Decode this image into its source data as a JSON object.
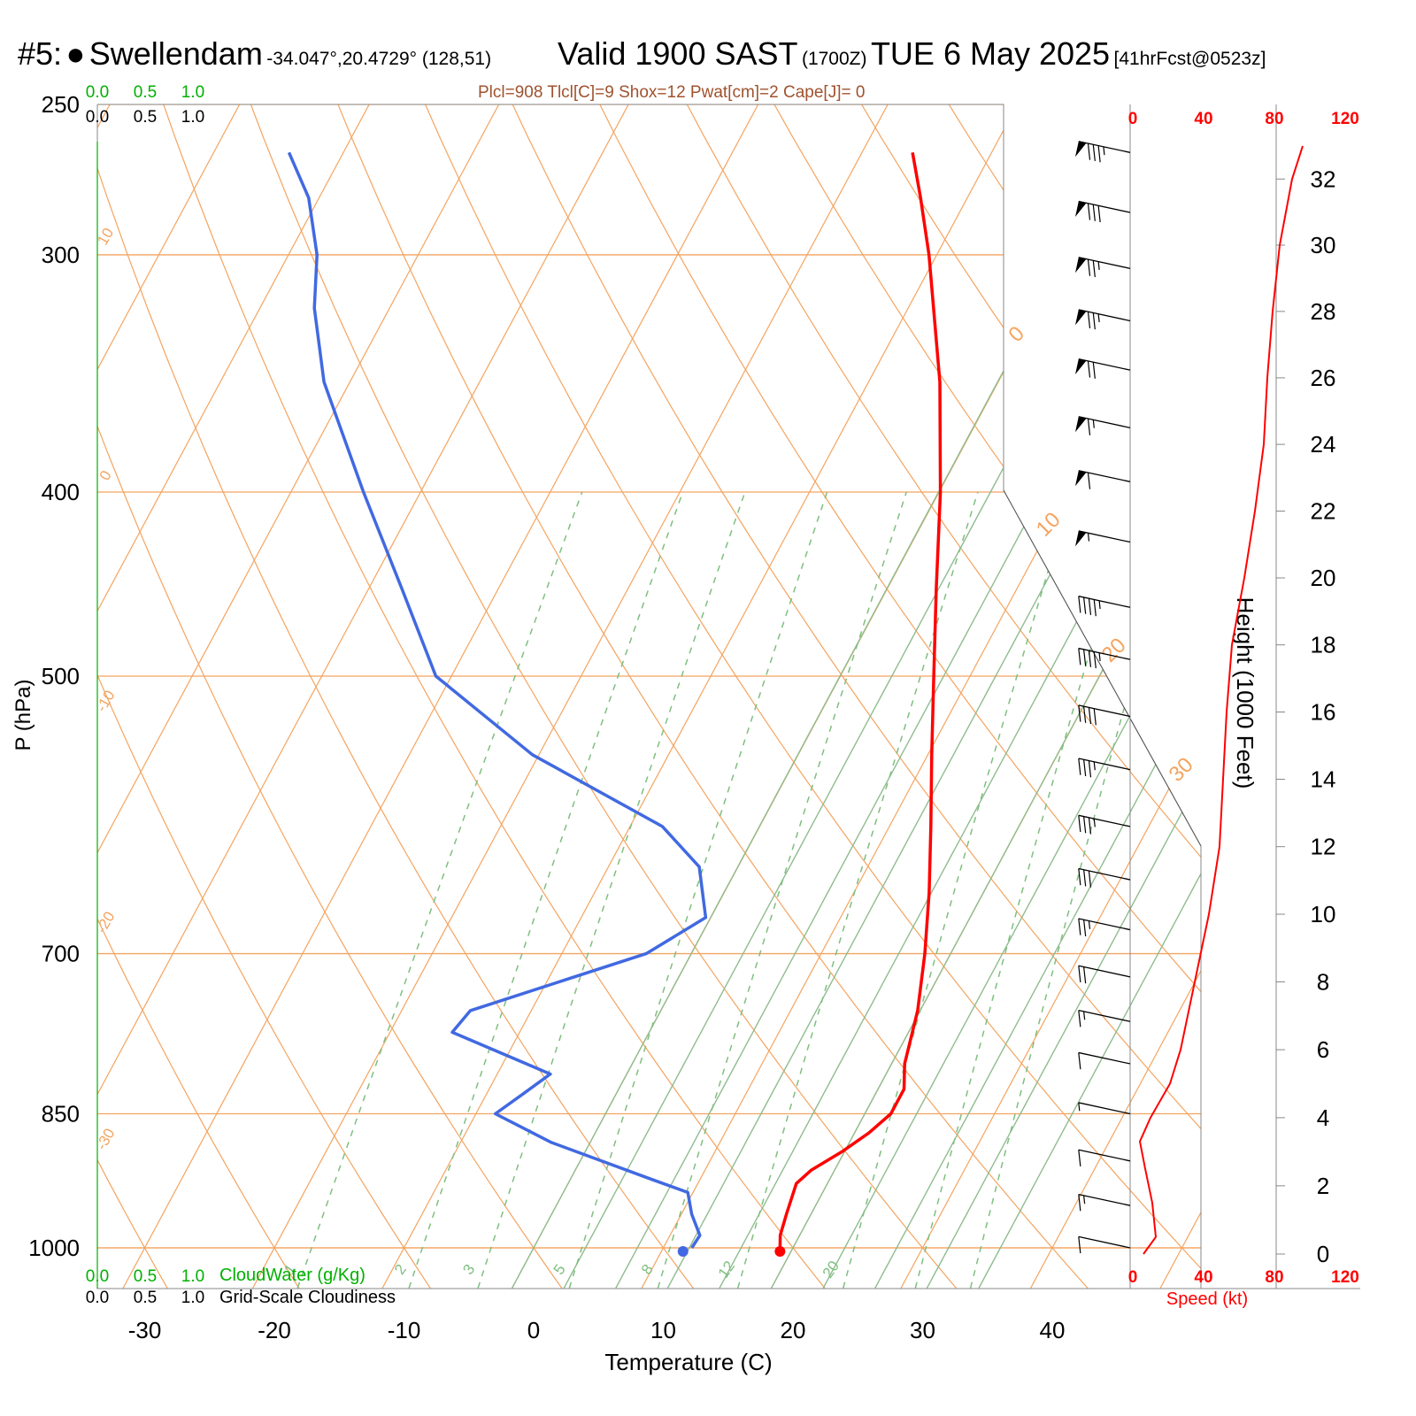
{
  "header": {
    "station_num": "#5:",
    "station_name": "Swellendam",
    "coords": "-34.047°,20.4729° (128,51)",
    "valid": "Valid 1900 SAST",
    "zulu": "(1700Z)",
    "date": "TUE 6 May 2025",
    "forecast": "[41hrFcst@0523z]"
  },
  "stats_line": "Plcl=908 Tlcl[C]=9 Shox=12 Pwat[cm]=2 Cape[J]= 0",
  "legend": {
    "cloudwater_label": "CloudWater (g/Kg)",
    "cloudiness_label": "Grid-Scale Cloudiness",
    "scale_ticks": [
      "0.0",
      "0.5",
      "1.0"
    ]
  },
  "colors": {
    "isotherm": "#f4a460",
    "dry_adiabat": "#f4a460",
    "moist_adiabat": "#8fbc8f",
    "mixing_ratio": "#7fbf7f",
    "temperature": "#ff0000",
    "dewpoint": "#4169e1",
    "wind_speed": "#ff0000",
    "cloudwater": "#00b000"
  },
  "chart_data": {
    "type": "line",
    "subtype": "skew-T log-P sounding",
    "xlabel": "Temperature (C)",
    "ylabel": "P (hPa)",
    "right_label": "Height (1000 Feet)",
    "speed_label": "Speed (kt)",
    "x_ticks": [
      -30,
      -20,
      -10,
      0,
      10,
      20,
      30,
      40
    ],
    "pressure_ticks": [
      1000,
      850,
      700,
      500,
      400,
      300,
      250
    ],
    "height_ticks_kft": [
      0,
      2,
      4,
      6,
      8,
      10,
      12,
      14,
      16,
      18,
      20,
      22,
      24,
      26,
      28,
      30,
      32
    ],
    "speed_ticks_kt": [
      0,
      40,
      80,
      120
    ],
    "isotherm_labels": [
      10,
      0,
      -10,
      -20,
      -30,
      0,
      10,
      20,
      30
    ],
    "mixing_ratio_labels": [
      1,
      2,
      3,
      5,
      8,
      12,
      20
    ],
    "temperature": [
      {
        "p": 1000,
        "t": 19.0
      },
      {
        "p": 985,
        "t": 18.5
      },
      {
        "p": 960,
        "t": 18.1
      },
      {
        "p": 925,
        "t": 17.6
      },
      {
        "p": 910,
        "t": 18.2
      },
      {
        "p": 890,
        "t": 19.8
      },
      {
        "p": 870,
        "t": 21.1
      },
      {
        "p": 850,
        "t": 22.0
      },
      {
        "p": 825,
        "t": 22.0
      },
      {
        "p": 800,
        "t": 21.0
      },
      {
        "p": 750,
        "t": 19.8
      },
      {
        "p": 700,
        "t": 18.0
      },
      {
        "p": 650,
        "t": 15.8
      },
      {
        "p": 600,
        "t": 13.2
      },
      {
        "p": 550,
        "t": 10.3
      },
      {
        "p": 500,
        "t": 7.2
      },
      {
        "p": 450,
        "t": 3.8
      },
      {
        "p": 400,
        "t": 0.1
      },
      {
        "p": 350,
        "t": -4.5
      },
      {
        "p": 300,
        "t": -10.6
      },
      {
        "p": 280,
        "t": -13.6
      },
      {
        "p": 265,
        "t": -16.1
      }
    ],
    "dewpoint": [
      {
        "p": 1000,
        "t": 12.2
      },
      {
        "p": 985,
        "t": 12.3
      },
      {
        "p": 960,
        "t": 10.8
      },
      {
        "p": 935,
        "t": 9.6
      },
      {
        "p": 920,
        "t": 6.2
      },
      {
        "p": 880,
        "t": -3.0
      },
      {
        "p": 850,
        "t": -8.5
      },
      {
        "p": 830,
        "t": -7.2
      },
      {
        "p": 810,
        "t": -5.9
      },
      {
        "p": 770,
        "t": -15.2
      },
      {
        "p": 750,
        "t": -14.7
      },
      {
        "p": 700,
        "t": -3.5
      },
      {
        "p": 670,
        "t": -0.4
      },
      {
        "p": 630,
        "t": -3.0
      },
      {
        "p": 600,
        "t": -7.5
      },
      {
        "p": 550,
        "t": -20.5
      },
      {
        "p": 500,
        "t": -31.2
      },
      {
        "p": 450,
        "t": -37.4
      },
      {
        "p": 400,
        "t": -44.4
      },
      {
        "p": 350,
        "t": -52.0
      },
      {
        "p": 320,
        "t": -55.8
      },
      {
        "p": 300,
        "t": -57.8
      },
      {
        "p": 280,
        "t": -60.8
      },
      {
        "p": 265,
        "t": -64.2
      }
    ],
    "wind_speed_profile": [
      {
        "h": 0,
        "s": 6
      },
      {
        "h": 0.5,
        "s": 13
      },
      {
        "h": 1.5,
        "s": 11
      },
      {
        "h": 2.5,
        "s": 7
      },
      {
        "h": 3.3,
        "s": 4
      },
      {
        "h": 4.0,
        "s": 10
      },
      {
        "h": 5.0,
        "s": 21
      },
      {
        "h": 6.0,
        "s": 27
      },
      {
        "h": 8.0,
        "s": 35
      },
      {
        "h": 10.0,
        "s": 43
      },
      {
        "h": 12.0,
        "s": 49
      },
      {
        "h": 14.0,
        "s": 51
      },
      {
        "h": 16.0,
        "s": 53
      },
      {
        "h": 18.0,
        "s": 56
      },
      {
        "h": 20.0,
        "s": 63
      },
      {
        "h": 22.0,
        "s": 69
      },
      {
        "h": 24.0,
        "s": 74
      },
      {
        "h": 26.0,
        "s": 76
      },
      {
        "h": 28.0,
        "s": 79
      },
      {
        "h": 30.0,
        "s": 83
      },
      {
        "h": 32.0,
        "s": 90
      },
      {
        "h": 33.0,
        "s": 96
      }
    ],
    "wind_barbs": [
      {
        "p": 265,
        "kt": 85
      },
      {
        "p": 285,
        "kt": 80
      },
      {
        "p": 305,
        "kt": 78
      },
      {
        "p": 325,
        "kt": 75
      },
      {
        "p": 345,
        "kt": 72
      },
      {
        "p": 370,
        "kt": 68
      },
      {
        "p": 395,
        "kt": 62
      },
      {
        "p": 425,
        "kt": 55
      },
      {
        "p": 460,
        "kt": 48
      },
      {
        "p": 490,
        "kt": 45
      },
      {
        "p": 525,
        "kt": 42
      },
      {
        "p": 560,
        "kt": 38
      },
      {
        "p": 600,
        "kt": 35
      },
      {
        "p": 640,
        "kt": 30
      },
      {
        "p": 680,
        "kt": 25
      },
      {
        "p": 720,
        "kt": 20
      },
      {
        "p": 760,
        "kt": 15
      },
      {
        "p": 800,
        "kt": 10
      },
      {
        "p": 850,
        "kt": 5
      },
      {
        "p": 900,
        "kt": 10
      },
      {
        "p": 950,
        "kt": 15
      },
      {
        "p": 1000,
        "kt": 10
      }
    ]
  }
}
